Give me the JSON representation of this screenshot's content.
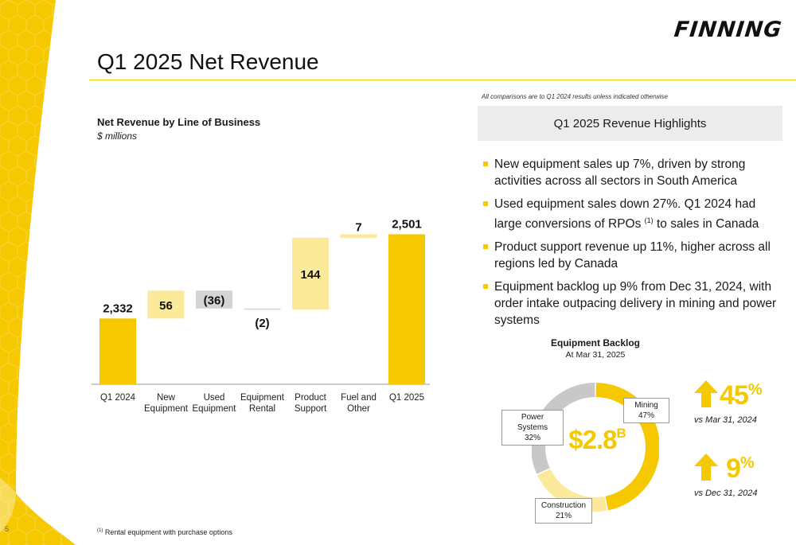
{
  "header": {
    "logo": "FINNING",
    "title": "Q1 2025 Net Revenue"
  },
  "page_number": "5",
  "chart": {
    "title": "Net Revenue by Line of Business",
    "subtitle": "$ millions"
  },
  "chart_data": {
    "type": "waterfall",
    "categories": [
      "Q1 2024",
      "New Equipment",
      "Used Equipment",
      "Equipment Rental",
      "Product Support",
      "Fuel and Other",
      "Q1 2025"
    ],
    "values": [
      2332,
      56,
      -36,
      -2,
      144,
      7,
      2501
    ],
    "labels": [
      "2,332",
      "56",
      "(36)",
      "(2)",
      "144",
      "7",
      "2,501"
    ],
    "kinds": [
      "total",
      "delta",
      "delta",
      "delta",
      "delta",
      "delta",
      "total"
    ],
    "colors": {
      "total": "#f5c800",
      "increase": "#fce99a",
      "decrease": "#d4d4d4"
    }
  },
  "highlights": {
    "note": "All comparisons are to Q1 2024 results unless indicated otherwise",
    "heading": "Q1 2025 Revenue Highlights",
    "bullets": [
      "New equipment sales up 7%, driven by strong activities across all sectors in South America",
      "Used equipment sales down 27%. Q1 2024 had large conversions of RPOs",
      "Product support revenue up 11%, higher across all regions led by Canada",
      "Equipment backlog up 9% from Dec 31, 2024, with order intake outpacing delivery in mining and power systems"
    ],
    "bullet2_sup": "(1)",
    "bullet2_tail": " to sales in Canada"
  },
  "backlog": {
    "title": "Equipment Backlog",
    "subtitle": "At Mar 31, 2025",
    "total": "$2.8",
    "total_suffix": "B",
    "segments": [
      {
        "name": "Mining",
        "pct": "47%",
        "value": 47,
        "color": "#f5c800"
      },
      {
        "name": "Construction",
        "pct": "21%",
        "value": 21,
        "color": "#fce99a"
      },
      {
        "name": "Power Systems",
        "pct": "32%",
        "value": 32,
        "color": "#c8c8c8"
      }
    ]
  },
  "stats": [
    {
      "value": "45",
      "unit": "%",
      "caption": "vs Mar 31, 2024",
      "direction": "up"
    },
    {
      "value": "9",
      "unit": "%",
      "caption": "vs Dec 31, 2024",
      "direction": "up"
    }
  ],
  "footnote": {
    "mark": "(1)",
    "text": " Rental equipment with purchase options"
  }
}
